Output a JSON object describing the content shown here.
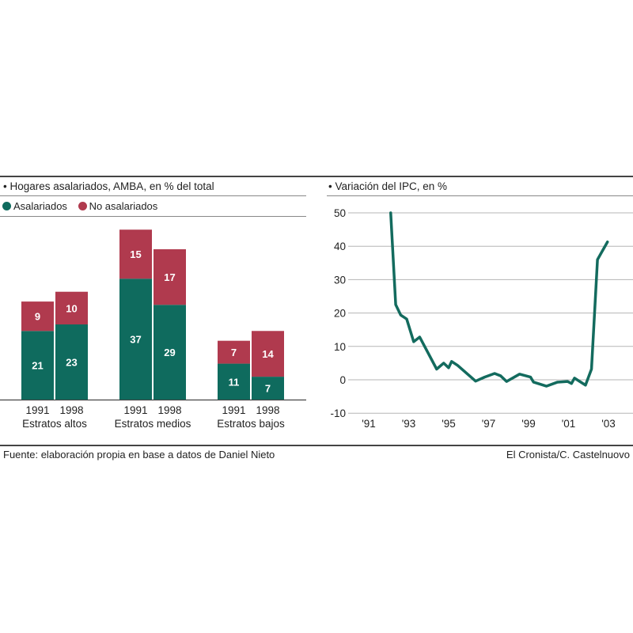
{
  "colors": {
    "asalariados": "#0f6b5e",
    "no_asalariados": "#b03a4e",
    "line": "#136b5e",
    "grid": "#b5b5b5"
  },
  "footer": {
    "source": "Fuente: elaboración propia en base a datos de Daniel Nieto",
    "credit": "El Cronista/C. Castelnuovo"
  },
  "chart_data": [
    {
      "type": "bar",
      "stacked": true,
      "title": "• Hogares asalariados, AMBA, en % del total",
      "legend": [
        "Asalariados",
        "No asalariados"
      ],
      "groups": [
        "Estratos altos",
        "Estratos medios",
        "Estratos bajos"
      ],
      "categories": [
        "1991",
        "1998"
      ],
      "series": [
        {
          "name": "Asalariados",
          "values": [
            [
              21,
              23
            ],
            [
              37,
              29
            ],
            [
              11,
              7
            ]
          ]
        },
        {
          "name": "No asalariados",
          "values": [
            [
              9,
              10
            ],
            [
              15,
              17
            ],
            [
              7,
              14
            ]
          ]
        }
      ]
    },
    {
      "type": "line",
      "title": "• Variación del IPC, en %",
      "ylim": [
        -10,
        50
      ],
      "yticks": [
        50,
        40,
        30,
        20,
        10,
        0,
        -10
      ],
      "xticks": [
        "'91",
        "'93",
        "'95",
        "'97",
        "'99",
        "'01",
        "'03"
      ],
      "xtick_years": [
        1991,
        1993,
        1995,
        1997,
        1999,
        2001,
        2003
      ],
      "grid": true,
      "x": [
        1992.1,
        1992.35,
        1992.6,
        1992.9,
        1993.25,
        1993.55,
        1994.4,
        1994.75,
        1995.0,
        1995.15,
        1995.45,
        1996.35,
        1996.8,
        1997.3,
        1997.6,
        1997.9,
        1998.55,
        1999.1,
        1999.25,
        1999.9,
        2000.45,
        2000.95,
        2001.15,
        2001.3,
        2001.85,
        2002.15,
        2002.45,
        2002.95
      ],
      "y": [
        50,
        22.5,
        19.4,
        18.2,
        11.4,
        12.8,
        3.2,
        5,
        3.6,
        5.5,
        4.3,
        -0.4,
        0.8,
        1.9,
        1.2,
        -0.5,
        1.7,
        0.8,
        -0.7,
        -1.9,
        -0.7,
        -0.5,
        -1.1,
        0.5,
        -1.6,
        3.2,
        36,
        41.3
      ]
    }
  ]
}
